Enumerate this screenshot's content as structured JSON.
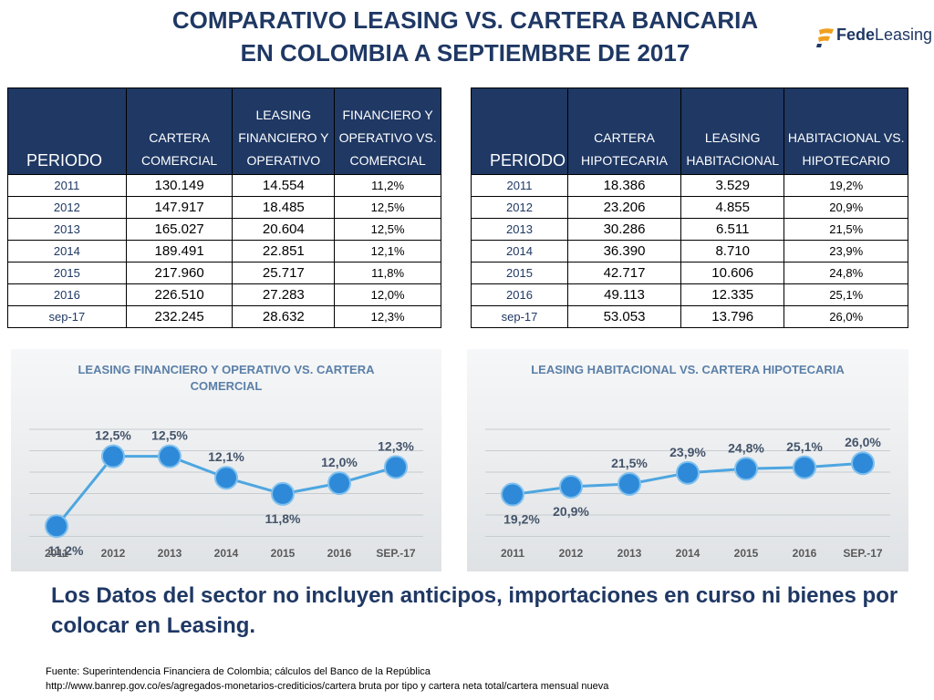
{
  "title": {
    "line1": "COMPARATIVO LEASING VS. CARTERA BANCARIA",
    "line2": "EN COLOMBIA A  SEPTIEMBRE DE 2017"
  },
  "logo": {
    "part1": "Fede",
    "part2": "Leasing"
  },
  "colors": {
    "navy": "#1f3864",
    "line": "#4da6e0",
    "marker": "#2e8ad8"
  },
  "table_left": {
    "headers": [
      "PERIODO",
      "CARTERA COMERCIAL",
      "LEASING FINANCIERO Y OPERATIVO",
      "FINANCIERO Y OPERATIVO VS. COMERCIAL"
    ],
    "rows": [
      [
        "2011",
        "130.149",
        "14.554",
        "11,2%"
      ],
      [
        "2012",
        "147.917",
        "18.485",
        "12,5%"
      ],
      [
        "2013",
        "165.027",
        "20.604",
        "12,5%"
      ],
      [
        "2014",
        "189.491",
        "22.851",
        "12,1%"
      ],
      [
        "2015",
        "217.960",
        "25.717",
        "11,8%"
      ],
      [
        "2016",
        "226.510",
        "27.283",
        "12,0%"
      ],
      [
        "sep-17",
        "232.245",
        "28.632",
        "12,3%"
      ]
    ]
  },
  "table_right": {
    "headers": [
      "PERIODO",
      "CARTERA HIPOTECARIA",
      "LEASING HABITACIONAL",
      "HABITACIONAL VS. HIPOTECARIO"
    ],
    "rows": [
      [
        "2011",
        "18.386",
        "3.529",
        "19,2%"
      ],
      [
        "2012",
        "23.206",
        "4.855",
        "20,9%"
      ],
      [
        "2013",
        "30.286",
        "6.511",
        "21,5%"
      ],
      [
        "2014",
        "36.390",
        "8.710",
        "23,9%"
      ],
      [
        "2015",
        "42.717",
        "10.606",
        "24,8%"
      ],
      [
        "2016",
        "49.113",
        "12.335",
        "25,1%"
      ],
      [
        "sep-17",
        "53.053",
        "13.796",
        "26,0%"
      ]
    ]
  },
  "chart_data": [
    {
      "type": "line",
      "title": "LEASING FINANCIERO Y OPERATIVO VS. CARTERA COMERCIAL",
      "title_lines": [
        "LEASING FINANCIERO Y OPERATIVO VS. CARTERA",
        "COMERCIAL"
      ],
      "categories": [
        "2011",
        "2012",
        "2013",
        "2014",
        "2015",
        "2016",
        "SEP.-17"
      ],
      "values": [
        11.2,
        12.5,
        12.5,
        12.1,
        11.8,
        12.0,
        12.3
      ],
      "labels": [
        "11,2%",
        "12,5%",
        "12,5%",
        "12,1%",
        "11,8%",
        "12,0%",
        "12,3%"
      ],
      "label_pos": [
        "below",
        "above",
        "above",
        "above",
        "below",
        "above",
        "above"
      ],
      "ylim": [
        11.0,
        12.8
      ],
      "grid": true
    },
    {
      "type": "line",
      "title": "LEASING HABITACIONAL VS. CARTERA HIPOTECARIA",
      "title_lines": [
        "LEASING HABITACIONAL VS. CARTERA HIPOTECARIA"
      ],
      "categories": [
        "2011",
        "2012",
        "2013",
        "2014",
        "2015",
        "2016",
        "SEP.-17"
      ],
      "values": [
        19.2,
        20.9,
        21.5,
        23.9,
        24.8,
        25.1,
        26.0
      ],
      "labels": [
        "19,2%",
        "20,9%",
        "21,5%",
        "23,9%",
        "24,8%",
        "25,1%",
        "26,0%"
      ],
      "label_pos": [
        "below",
        "below",
        "above",
        "above",
        "above",
        "above",
        "above"
      ],
      "ylim": [
        10.0,
        31.0
      ],
      "grid": true
    }
  ],
  "note": "Los Datos del sector no incluyen anticipos, importaciones en curso ni bienes por colocar en Leasing.",
  "source": {
    "line1": "Fuente: Superintendencia Financiera de Colombia; cálculos del Banco de la República",
    "line2": "http://www.banrep.gov.co/es/agregados-monetarios-crediticios/cartera bruta por tipo y cartera neta total/cartera mensual nueva"
  }
}
